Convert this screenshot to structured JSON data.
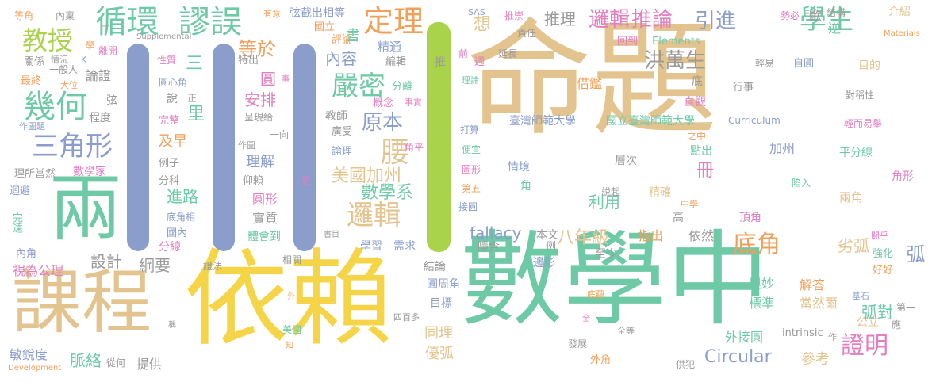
{
  "colors": {
    "tan": "#e3c48f",
    "green": "#6ec9a6",
    "yellow": "#f5d547",
    "blue": "#8a9dcb",
    "pink": "#e27fc0",
    "orange": "#f0a05a",
    "lime": "#a9d34b",
    "gray": "#9a9a9a"
  },
  "words": {
    "w001": "命題",
    "w002": "數學中",
    "w003": "依賴",
    "w004": "課程",
    "w005": "兩",
    "w006": "循環",
    "w007": "謬誤",
    "w008": "定理",
    "w009": "邏輯",
    "w010": "推論",
    "w011": "學生",
    "w012": "教授",
    "w013": "幾何",
    "w014": "三角形",
    "w015": "等於",
    "w016": "嚴密",
    "w017": "洪萬生",
    "w018": "引進",
    "w019": "想",
    "w020": "推理",
    "w021": "原本",
    "w022": "腰",
    "w023": "內容",
    "w024": "邏輯",
    "w025": "美國加州",
    "w026": "數學系",
    "w027": "八年級",
    "w028": "底角",
    "w029": "證明",
    "w030": "弧對",
    "w031": "弧",
    "w032": "劣弧",
    "w033": "Circular",
    "w034": "fallacy",
    "w035": "設計",
    "w036": "綱要",
    "w037": "脈絡",
    "w038": "提供",
    "w039": "敏銳度",
    "w040": "視為公理",
    "w041": "三",
    "w042": "里",
    "w043": "及早",
    "w044": "安排",
    "w045": "圓",
    "w046": "理解",
    "w047": "圓形",
    "w048": "進路",
    "w049": "實質",
    "w050": "體會到",
    "w051": "利用",
    "w052": "冊",
    "w053": "加州",
    "w054": "平分線",
    "w055": "點出",
    "w056": "臺灣師範大學",
    "w057": "國立臺灣師範大學",
    "w058": "借鑑",
    "w059": "層次",
    "w060": "情境",
    "w061": "角",
    "w062": "精確",
    "w063": "奧妙",
    "w064": "標準",
    "w065": "當然爾",
    "w066": "解答",
    "w067": "外接圓",
    "w068": "參考",
    "w069": "優弧",
    "w070": "同理",
    "w071": "目標",
    "w072": "圓周角",
    "w073": "結論",
    "w074": "隱含",
    "w075": "學習",
    "w076": "需求",
    "w077": "本文",
    "w078": "至少",
    "w079": "指出",
    "w080": "依然",
    "w081": "底",
    "w082": "行事",
    "w083": "自圓",
    "w084": "目的",
    "w085": "直觀",
    "w086": "對稱性",
    "w087": "輕而易舉",
    "w088": "輕易",
    "w089": "介紹",
    "w090": "逆",
    "w091": "Materials",
    "w092": "結構",
    "w093": "歐",
    "w094": "勢必",
    "w095": "責任",
    "w096": "推崇",
    "w097": "延長",
    "w098": "回到",
    "w099": "Elements",
    "w100": "週",
    "w101": "前",
    "w102": "理論",
    "w103": "SAS",
    "w104": "弦截出相等",
    "w105": "國立",
    "w106": "評論",
    "w107": "精通",
    "w108": "編輯",
    "w109": "推",
    "w110": "分離",
    "w111": "概念",
    "w112": "事實",
    "w113": "教師",
    "w114": "廣受",
    "w115": "論理",
    "w116": "角平",
    "w117": "便宜",
    "w118": "打算",
    "w119": "圖形",
    "w120": "接圓",
    "w121": "第五",
    "w122": "書",
    "w123": "說起",
    "w124": "中學",
    "w125": "高",
    "w126": "頂角",
    "w127": "角形",
    "w128": "兩角",
    "w129": "陷入",
    "w130": "關乎",
    "w131": "強化",
    "w132": "好好",
    "w133": "公立",
    "w134": "應",
    "w135": "第一",
    "w136": "基石",
    "w137": "intrinsic",
    "w138": "作",
    "w139": "供犯",
    "w140": "外角",
    "w141": "發展",
    "w142": "全等",
    "w143": "全",
    "w144": "底蘊",
    "w145": "邊形",
    "w146": "例",
    "w147": "四百多",
    "w148": "美國",
    "w149": "知",
    "w150": "外",
    "w151": "從何",
    "w152": "稱",
    "w153": "Development",
    "w154": "證法",
    "w155": "相關",
    "w156": "分線",
    "w157": "國內",
    "w158": "底角相",
    "w159": "書目",
    "w160": "更",
    "w161": "仰賴",
    "w162": "例子",
    "w163": "分科",
    "w164": "作圖",
    "w165": "一向",
    "w166": "呈現給",
    "w167": "圓心角",
    "w168": "說",
    "w169": "正",
    "w170": "完整",
    "w171": "特出",
    "w172": "性質",
    "w173": "一般人",
    "w174": "大位",
    "w175": "論證",
    "w176": "弦",
    "w177": "程度",
    "w178": "作圖題",
    "w179": "數學家",
    "w180": "理所當然",
    "w181": "迴避",
    "w182": "完遠",
    "w183": "內角",
    "w184": "最終",
    "w185": "關係",
    "w186": "情況",
    "w187": "K",
    "w188": "離開",
    "w189": "內稟",
    "w190": "等角",
    "w191": "Supplemental",
    "w192": "學",
    "w193": "有意",
    "w194": "Curriculum",
    "w195": "事",
    "w196": "之中",
    "w197": "一"
  }
}
